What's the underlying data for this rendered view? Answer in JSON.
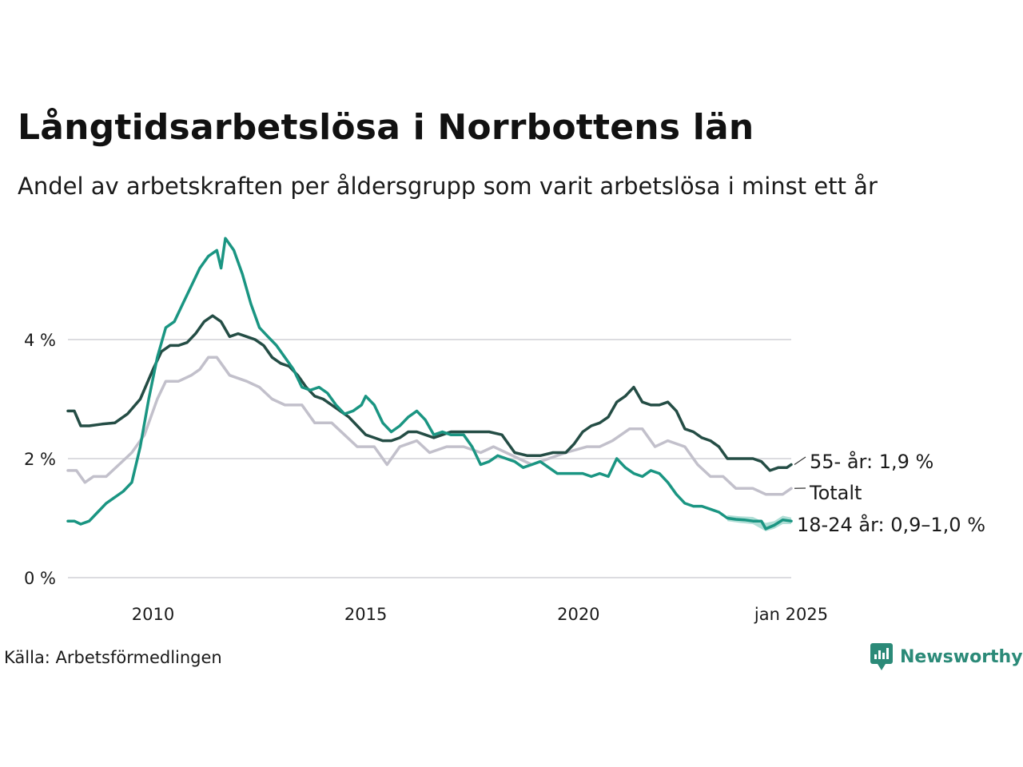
{
  "title": "Långtidsarbetslösa i Norrbottens län",
  "subtitle": "Andel av arbetskraften per åldersgrupp som varit arbetslösa i minst ett år",
  "source": "Källa: Arbetsförmedlingen",
  "brand": {
    "name": "Newsworthy",
    "icon": "newsworthy-logo-icon",
    "color": "#2b8a78"
  },
  "chart_data": {
    "type": "line",
    "title": "Långtidsarbetslösa i Norrbottens län",
    "ylabel": "",
    "xlabel": "",
    "ylim": [
      0,
      6
    ],
    "yticks": [
      0,
      2,
      4
    ],
    "ytick_labels": [
      "0 %",
      "2 %",
      "4 %"
    ],
    "xlim": [
      2008.0,
      2025.0
    ],
    "xticks": [
      2010,
      2015,
      2020,
      2025
    ],
    "xtick_labels": [
      "2010",
      "2015",
      "2020",
      "jan 2025"
    ],
    "grid": "horizontal",
    "series": [
      {
        "name": "Totalt",
        "label": "Totalt",
        "color": "#c2c0cb",
        "points": [
          [
            2008.0,
            1.8
          ],
          [
            2008.2,
            1.8
          ],
          [
            2008.4,
            1.6
          ],
          [
            2008.6,
            1.7
          ],
          [
            2008.9,
            1.7
          ],
          [
            2009.2,
            1.9
          ],
          [
            2009.5,
            2.1
          ],
          [
            2009.8,
            2.4
          ],
          [
            2010.1,
            3.0
          ],
          [
            2010.3,
            3.3
          ],
          [
            2010.6,
            3.3
          ],
          [
            2010.9,
            3.4
          ],
          [
            2011.1,
            3.5
          ],
          [
            2011.3,
            3.7
          ],
          [
            2011.5,
            3.7
          ],
          [
            2011.8,
            3.4
          ],
          [
            2012.2,
            3.3
          ],
          [
            2012.5,
            3.2
          ],
          [
            2012.8,
            3.0
          ],
          [
            2013.1,
            2.9
          ],
          [
            2013.5,
            2.9
          ],
          [
            2013.8,
            2.6
          ],
          [
            2014.2,
            2.6
          ],
          [
            2014.5,
            2.4
          ],
          [
            2014.8,
            2.2
          ],
          [
            2015.2,
            2.2
          ],
          [
            2015.5,
            1.9
          ],
          [
            2015.8,
            2.2
          ],
          [
            2016.2,
            2.3
          ],
          [
            2016.5,
            2.1
          ],
          [
            2016.9,
            2.2
          ],
          [
            2017.3,
            2.2
          ],
          [
            2017.7,
            2.1
          ],
          [
            2018.0,
            2.2
          ],
          [
            2018.3,
            2.1
          ],
          [
            2018.6,
            2.0
          ],
          [
            2018.9,
            1.9
          ],
          [
            2019.3,
            2.0
          ],
          [
            2019.7,
            2.1
          ],
          [
            2020.2,
            2.2
          ],
          [
            2020.5,
            2.2
          ],
          [
            2020.8,
            2.3
          ],
          [
            2021.0,
            2.4
          ],
          [
            2021.2,
            2.5
          ],
          [
            2021.5,
            2.5
          ],
          [
            2021.8,
            2.2
          ],
          [
            2022.1,
            2.3
          ],
          [
            2022.5,
            2.2
          ],
          [
            2022.8,
            1.9
          ],
          [
            2023.1,
            1.7
          ],
          [
            2023.4,
            1.7
          ],
          [
            2023.7,
            1.5
          ],
          [
            2024.1,
            1.5
          ],
          [
            2024.4,
            1.4
          ],
          [
            2024.8,
            1.4
          ],
          [
            2025.0,
            1.5
          ]
        ],
        "end_label": "Totalt"
      },
      {
        "name": "55- år",
        "label": "55- år: 1,9 %",
        "color": "#244d45",
        "points": [
          [
            2008.0,
            2.8
          ],
          [
            2008.15,
            2.8
          ],
          [
            2008.3,
            2.55
          ],
          [
            2008.5,
            2.55
          ],
          [
            2008.8,
            2.58
          ],
          [
            2009.1,
            2.6
          ],
          [
            2009.4,
            2.75
          ],
          [
            2009.7,
            3.0
          ],
          [
            2010.0,
            3.5
          ],
          [
            2010.2,
            3.8
          ],
          [
            2010.4,
            3.9
          ],
          [
            2010.6,
            3.9
          ],
          [
            2010.8,
            3.95
          ],
          [
            2011.0,
            4.1
          ],
          [
            2011.2,
            4.3
          ],
          [
            2011.4,
            4.4
          ],
          [
            2011.6,
            4.3
          ],
          [
            2011.8,
            4.05
          ],
          [
            2012.0,
            4.1
          ],
          [
            2012.2,
            4.05
          ],
          [
            2012.4,
            4.0
          ],
          [
            2012.6,
            3.9
          ],
          [
            2012.8,
            3.7
          ],
          [
            2013.0,
            3.6
          ],
          [
            2013.2,
            3.55
          ],
          [
            2013.4,
            3.4
          ],
          [
            2013.6,
            3.2
          ],
          [
            2013.8,
            3.05
          ],
          [
            2014.0,
            3.0
          ],
          [
            2014.2,
            2.9
          ],
          [
            2014.4,
            2.8
          ],
          [
            2014.6,
            2.7
          ],
          [
            2014.8,
            2.55
          ],
          [
            2015.0,
            2.4
          ],
          [
            2015.2,
            2.35
          ],
          [
            2015.4,
            2.3
          ],
          [
            2015.6,
            2.3
          ],
          [
            2015.8,
            2.35
          ],
          [
            2016.0,
            2.45
          ],
          [
            2016.2,
            2.45
          ],
          [
            2016.4,
            2.4
          ],
          [
            2016.6,
            2.35
          ],
          [
            2016.8,
            2.4
          ],
          [
            2017.0,
            2.45
          ],
          [
            2017.3,
            2.45
          ],
          [
            2017.6,
            2.45
          ],
          [
            2017.9,
            2.45
          ],
          [
            2018.2,
            2.4
          ],
          [
            2018.5,
            2.1
          ],
          [
            2018.8,
            2.05
          ],
          [
            2019.1,
            2.05
          ],
          [
            2019.4,
            2.1
          ],
          [
            2019.7,
            2.1
          ],
          [
            2019.9,
            2.25
          ],
          [
            2020.1,
            2.45
          ],
          [
            2020.3,
            2.55
          ],
          [
            2020.5,
            2.6
          ],
          [
            2020.7,
            2.7
          ],
          [
            2020.9,
            2.95
          ],
          [
            2021.1,
            3.05
          ],
          [
            2021.3,
            3.2
          ],
          [
            2021.5,
            2.95
          ],
          [
            2021.7,
            2.9
          ],
          [
            2021.9,
            2.9
          ],
          [
            2022.1,
            2.95
          ],
          [
            2022.3,
            2.8
          ],
          [
            2022.5,
            2.5
          ],
          [
            2022.7,
            2.45
          ],
          [
            2022.9,
            2.35
          ],
          [
            2023.1,
            2.3
          ],
          [
            2023.3,
            2.2
          ],
          [
            2023.5,
            2.0
          ],
          [
            2023.7,
            2.0
          ],
          [
            2023.9,
            2.0
          ],
          [
            2024.1,
            2.0
          ],
          [
            2024.3,
            1.95
          ],
          [
            2024.5,
            1.8
          ],
          [
            2024.7,
            1.85
          ],
          [
            2024.9,
            1.85
          ],
          [
            2025.0,
            1.9
          ]
        ],
        "end_label": "55- år: 1,9 %"
      },
      {
        "name": "18-24 år",
        "label": "18-24 år: 0,9–1,0 %",
        "color": "#1a9582",
        "band_color": "#8fd0c4",
        "points": [
          [
            2008.0,
            0.95
          ],
          [
            2008.15,
            0.95
          ],
          [
            2008.3,
            0.9
          ],
          [
            2008.5,
            0.95
          ],
          [
            2008.7,
            1.1
          ],
          [
            2008.9,
            1.25
          ],
          [
            2009.1,
            1.35
          ],
          [
            2009.3,
            1.45
          ],
          [
            2009.5,
            1.6
          ],
          [
            2009.7,
            2.2
          ],
          [
            2009.9,
            3.0
          ],
          [
            2010.1,
            3.7
          ],
          [
            2010.3,
            4.2
          ],
          [
            2010.5,
            4.3
          ],
          [
            2010.7,
            4.6
          ],
          [
            2010.9,
            4.9
          ],
          [
            2011.1,
            5.2
          ],
          [
            2011.3,
            5.4
          ],
          [
            2011.5,
            5.5
          ],
          [
            2011.6,
            5.2
          ],
          [
            2011.7,
            5.7
          ],
          [
            2011.9,
            5.5
          ],
          [
            2012.1,
            5.1
          ],
          [
            2012.3,
            4.6
          ],
          [
            2012.5,
            4.2
          ],
          [
            2012.7,
            4.05
          ],
          [
            2012.9,
            3.9
          ],
          [
            2013.1,
            3.7
          ],
          [
            2013.3,
            3.5
          ],
          [
            2013.5,
            3.2
          ],
          [
            2013.7,
            3.15
          ],
          [
            2013.9,
            3.2
          ],
          [
            2014.1,
            3.1
          ],
          [
            2014.3,
            2.9
          ],
          [
            2014.5,
            2.75
          ],
          [
            2014.7,
            2.8
          ],
          [
            2014.9,
            2.9
          ],
          [
            2015.0,
            3.05
          ],
          [
            2015.2,
            2.9
          ],
          [
            2015.4,
            2.6
          ],
          [
            2015.6,
            2.45
          ],
          [
            2015.8,
            2.55
          ],
          [
            2016.0,
            2.7
          ],
          [
            2016.2,
            2.8
          ],
          [
            2016.4,
            2.65
          ],
          [
            2016.6,
            2.4
          ],
          [
            2016.8,
            2.45
          ],
          [
            2017.0,
            2.4
          ],
          [
            2017.3,
            2.4
          ],
          [
            2017.5,
            2.2
          ],
          [
            2017.7,
            1.9
          ],
          [
            2017.9,
            1.95
          ],
          [
            2018.1,
            2.05
          ],
          [
            2018.3,
            2.0
          ],
          [
            2018.5,
            1.95
          ],
          [
            2018.7,
            1.85
          ],
          [
            2018.9,
            1.9
          ],
          [
            2019.1,
            1.95
          ],
          [
            2019.3,
            1.85
          ],
          [
            2019.5,
            1.75
          ],
          [
            2019.7,
            1.75
          ],
          [
            2019.9,
            1.75
          ],
          [
            2020.1,
            1.75
          ],
          [
            2020.3,
            1.7
          ],
          [
            2020.5,
            1.75
          ],
          [
            2020.7,
            1.7
          ],
          [
            2020.9,
            2.0
          ],
          [
            2021.1,
            1.85
          ],
          [
            2021.3,
            1.75
          ],
          [
            2021.5,
            1.7
          ],
          [
            2021.7,
            1.8
          ],
          [
            2021.9,
            1.75
          ],
          [
            2022.1,
            1.6
          ],
          [
            2022.3,
            1.4
          ],
          [
            2022.5,
            1.25
          ],
          [
            2022.7,
            1.2
          ],
          [
            2022.9,
            1.2
          ],
          [
            2023.1,
            1.15
          ],
          [
            2023.3,
            1.1
          ],
          [
            2023.5,
            1.0
          ],
          [
            2023.7,
            0.98
          ],
          [
            2023.9,
            0.97
          ],
          [
            2024.1,
            0.95
          ],
          [
            2024.3,
            0.95
          ],
          [
            2024.4,
            0.82
          ],
          [
            2024.6,
            0.88
          ],
          [
            2024.8,
            0.97
          ],
          [
            2025.0,
            0.95
          ]
        ],
        "band": [
          [
            2023.5,
            0.95,
            1.05
          ],
          [
            2023.8,
            0.92,
            1.03
          ],
          [
            2024.1,
            0.9,
            1.02
          ],
          [
            2024.4,
            0.78,
            0.92
          ],
          [
            2024.6,
            0.82,
            0.95
          ],
          [
            2024.8,
            0.9,
            1.04
          ],
          [
            2025.0,
            0.9,
            1.01
          ]
        ],
        "end_label": "18-24 år: 0,9–1,0 %"
      }
    ]
  }
}
